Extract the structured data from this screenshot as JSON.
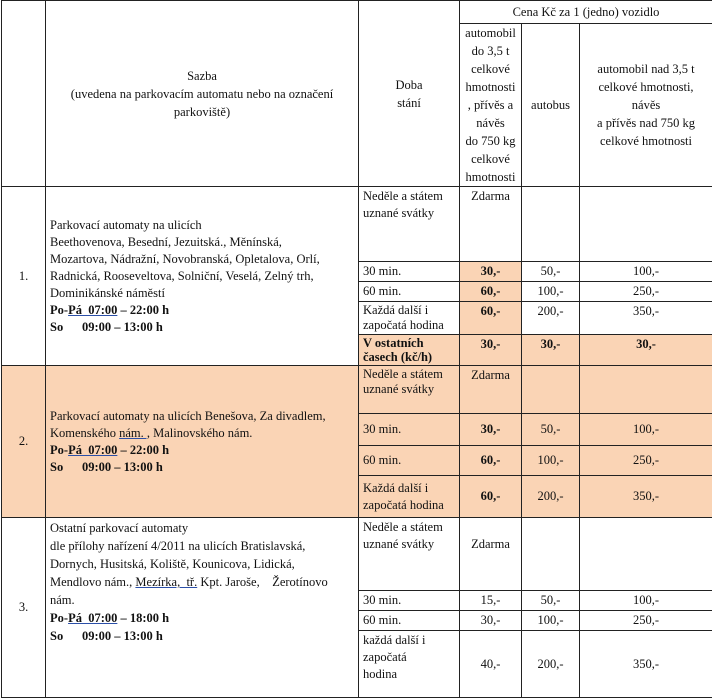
{
  "header": {
    "sazba": "Sazba",
    "sazba_note": "(uvedena na parkovacím automatu nebo na označení parkoviště)",
    "doba": [
      "Doba",
      "stání"
    ],
    "cena": "Cena Kč za 1 (jedno) vozidlo",
    "col_car": [
      "automobil",
      "do 3,5 t",
      "celkové",
      "hmotnosti",
      ", přívěs a",
      "návěs",
      "do 750 kg",
      "celkové",
      "hmotnosti"
    ],
    "col_bus": "autobus",
    "col_heavy": [
      "automobil nad 3,5 t",
      "celkové hmotnosti,",
      "návěs",
      "a přívěs nad 750 kg",
      "celkové hmotnosti"
    ]
  },
  "colors": {
    "highlight": "#fad4b5"
  },
  "groups": [
    {
      "num": "1.",
      "desc": [
        "Parkovací automaty na ulicích",
        "Beethovenova, Besední, Jezuitská., Měnínská,",
        "Mozartova, Nádražní, Novobranská, Opletalova, Orlí,",
        "Radnická, Rooseveltova, Solniční, Veselá, Zelný trh,",
        "Dominikánské náměstí"
      ],
      "hours1_a": "Po-",
      "hours1_b": "Pá  07:00",
      "hours1_c": " – 22:00 h",
      "hours2": "So      09:00 – 13:00 h",
      "rows": [
        {
          "doba": "Neděle a státem uznané svátky",
          "car": "Zdarma",
          "bus": "",
          "heavy": ""
        },
        {
          "doba": "30 min.",
          "car": "30,-",
          "bus": "50,-",
          "heavy": "100,-"
        },
        {
          "doba": "60 min.",
          "car": "60,-",
          "bus": "100,-",
          "heavy": "250,-"
        },
        {
          "doba": "Každá další i započatá hodina",
          "car": "60,-",
          "bus": "200,-",
          "heavy": "350,-"
        },
        {
          "doba": "V ostatních časech (kč/h)",
          "car": "30,-",
          "bus": "30,-",
          "heavy": "30,-"
        }
      ]
    },
    {
      "num": "2.",
      "desc": [
        "Parkovací automaty na ulicích Benešova, Za divadlem,"
      ],
      "desc2_a": "Komenského ",
      "desc2_b": "nám. ,",
      "desc2_c": " Malinovského nám.",
      "hours1_a": "Po-",
      "hours1_b": "Pá  07:00",
      "hours1_c": " – 22:00 h",
      "hours2": "So      09:00 – 13:00 h",
      "rows": [
        {
          "doba": "Neděle a státem uznané svátky",
          "car": "Zdarma",
          "bus": "",
          "heavy": ""
        },
        {
          "doba": "30 min.",
          "car": "30,-",
          "bus": "50,-",
          "heavy": "100,-"
        },
        {
          "doba": "60 min.",
          "car": "60,-",
          "bus": "100,-",
          "heavy": "250,-"
        },
        {
          "doba": "Každá další i započatá hodina",
          "car": "60,-",
          "bus": "200,-",
          "heavy": "350,-"
        }
      ]
    },
    {
      "num": "3.",
      "desc": [
        "Ostatní parkovací automaty",
        "dle přílohy nařízení 4/2011 na ulicích Bratislavská,",
        "Dornych, Husitská, Koliště, Kounicova, Lidická,"
      ],
      "desc4_a": "Mendlovo nám., ",
      "desc4_b": "Mezírka,  tř.",
      "desc4_c": " Kpt. Jaroše,    Žerotínovo",
      "desc5": "nám.",
      "hours1_a": "Po-",
      "hours1_b": "Pá  07:00",
      "hours1_c": " – 18:00 h",
      "hours2": "So      09:00 – 13:00 h",
      "rows": [
        {
          "doba": "Neděle a státem uznané svátky",
          "car": "Zdarma",
          "bus": "",
          "heavy": ""
        },
        {
          "doba": "30 min.",
          "car": "15,-",
          "bus": "50,-",
          "heavy": "100,-"
        },
        {
          "doba": "60 min.",
          "car": "30,-",
          "bus": "100,-",
          "heavy": "250,-"
        },
        {
          "doba": "každá další i započatá hodina",
          "car": "40,-",
          "bus": "200,-",
          "heavy": "350,-"
        }
      ]
    }
  ]
}
